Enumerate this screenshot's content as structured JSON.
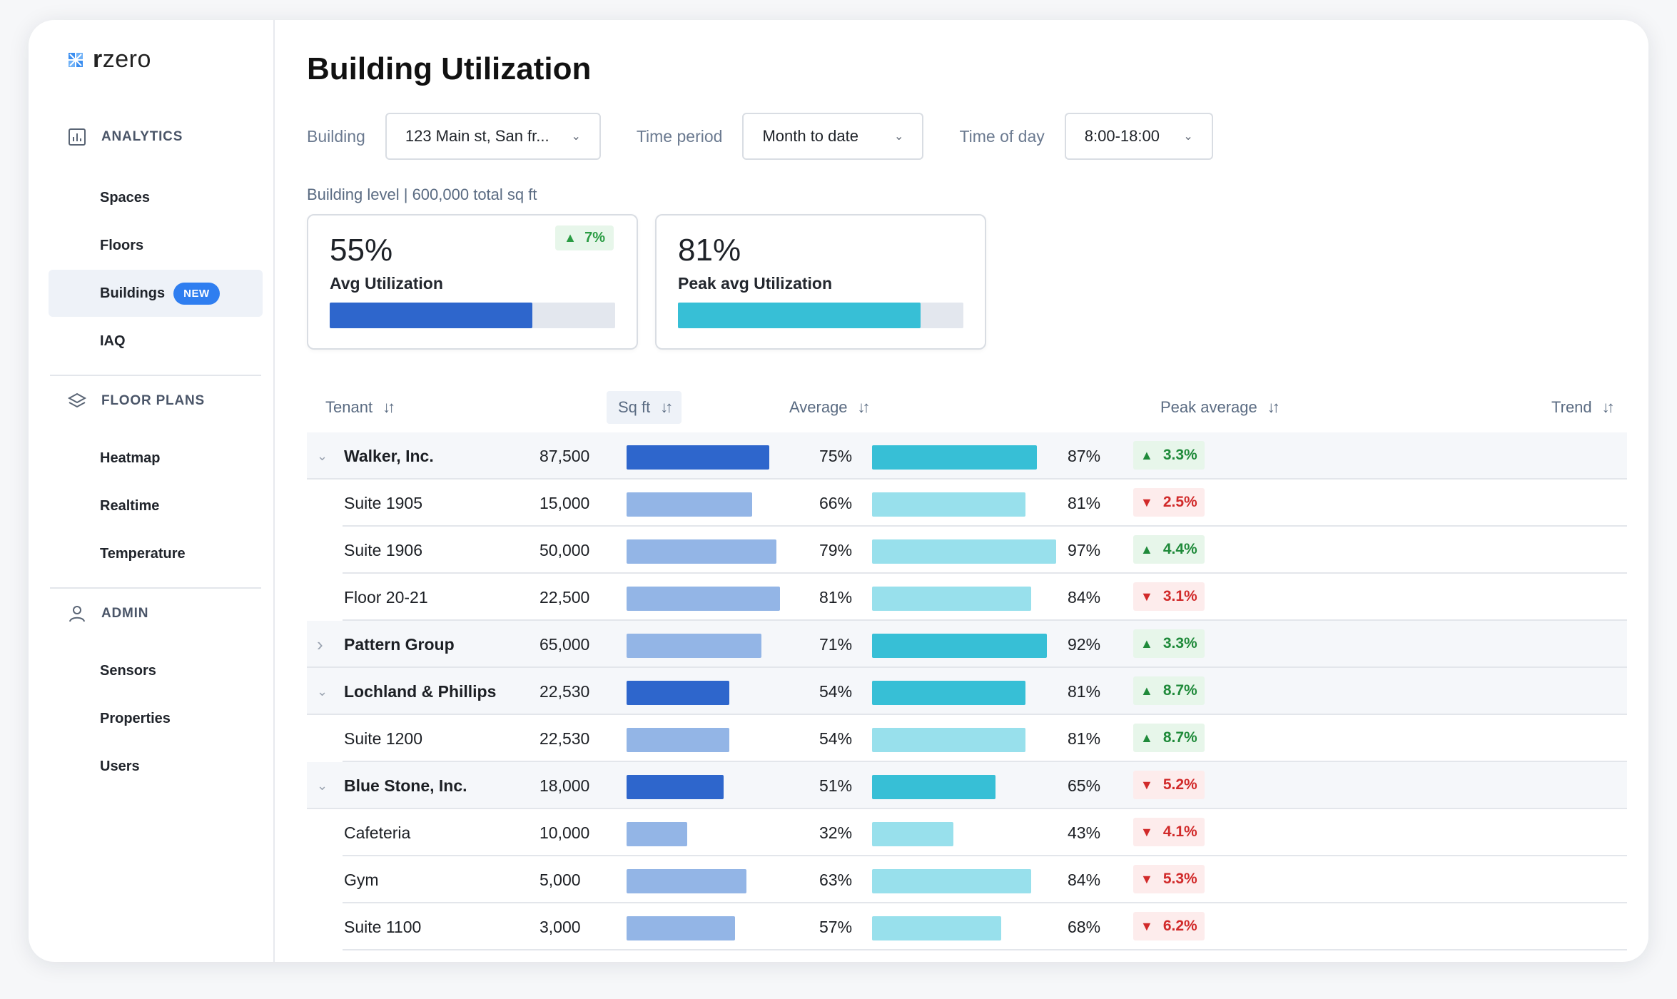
{
  "app": {
    "logo_text_bold": "r",
    "logo_text": "zero"
  },
  "sidebar": {
    "analytics": {
      "title": "ANALYTICS",
      "items": [
        {
          "label": "Spaces"
        },
        {
          "label": "Floors"
        },
        {
          "label": "Buildings",
          "badge": "NEW"
        },
        {
          "label": "IAQ"
        }
      ]
    },
    "floor_plans": {
      "title": "FLOOR PLANS",
      "items": [
        {
          "label": "Heatmap"
        },
        {
          "label": "Realtime"
        },
        {
          "label": "Temperature"
        }
      ]
    },
    "admin": {
      "title": "ADMIN",
      "items": [
        {
          "label": "Sensors"
        },
        {
          "label": "Properties"
        },
        {
          "label": "Users"
        }
      ]
    }
  },
  "page": {
    "title": "Building Utilization",
    "filters": {
      "building_label": "Building",
      "building_value": "123 Main st, San fr...",
      "period_label": "Time period",
      "period_value": "Month to date",
      "tod_label": "Time of day",
      "tod_value": "8:00-18:00"
    },
    "level_line": "Building level  |  600,000 total sq ft",
    "kpis": {
      "avg": {
        "value": "55%",
        "label": "Avg Utilization",
        "delta": "7%",
        "fraction": 0.71
      },
      "peak": {
        "value": "81%",
        "label": "Peak avg Utilization",
        "fraction": 0.85
      }
    }
  },
  "colors": {
    "avg_dark": "#2e66cc",
    "avg_light": "#93b5e6",
    "peak_dark": "#37bfd6",
    "peak_light": "#98e0ec"
  },
  "table": {
    "headers": {
      "tenant": "Tenant",
      "sqft": "Sq ft",
      "average": "Average",
      "peak": "Peak average",
      "trend": "Trend"
    },
    "rows": [
      {
        "type": "parent",
        "expanded": true,
        "name": "Walker, Inc.",
        "sqft": "87,500",
        "avg": "75%",
        "avg_val": 0.75,
        "peak": "87%",
        "peak_val": 0.87,
        "trend": "3.3%",
        "dir": "up"
      },
      {
        "type": "child",
        "name": "Suite 1905",
        "sqft": "15,000",
        "avg": "66%",
        "avg_val": 0.66,
        "peak": "81%",
        "peak_val": 0.81,
        "trend": "2.5%",
        "dir": "down"
      },
      {
        "type": "child",
        "name": "Suite 1906",
        "sqft": "50,000",
        "avg": "79%",
        "avg_val": 0.79,
        "peak": "97%",
        "peak_val": 0.97,
        "trend": "4.4%",
        "dir": "up"
      },
      {
        "type": "child",
        "name": "Floor 20-21",
        "sqft": "22,500",
        "avg": "81%",
        "avg_val": 0.81,
        "peak": "84%",
        "peak_val": 0.84,
        "trend": "3.1%",
        "dir": "down"
      },
      {
        "type": "parent",
        "expanded": false,
        "name": "Pattern Group",
        "sqft": "65,000",
        "avg": "71%",
        "avg_val": 0.71,
        "peak": "92%",
        "peak_val": 0.92,
        "trend": "3.3%",
        "dir": "up",
        "light_avg": true
      },
      {
        "type": "parent",
        "expanded": true,
        "name": "Lochland & Phillips",
        "sqft": "22,530",
        "avg": "54%",
        "avg_val": 0.54,
        "peak": "81%",
        "peak_val": 0.81,
        "trend": "8.7%",
        "dir": "up"
      },
      {
        "type": "child",
        "name": "Suite 1200",
        "sqft": "22,530",
        "avg": "54%",
        "avg_val": 0.54,
        "peak": "81%",
        "peak_val": 0.81,
        "trend": "8.7%",
        "dir": "up"
      },
      {
        "type": "parent",
        "expanded": true,
        "name": "Blue Stone, Inc.",
        "sqft": "18,000",
        "avg": "51%",
        "avg_val": 0.51,
        "peak": "65%",
        "peak_val": 0.65,
        "trend": "5.2%",
        "dir": "down"
      },
      {
        "type": "child",
        "name": "Cafeteria",
        "sqft": "10,000",
        "avg": "32%",
        "avg_val": 0.32,
        "peak": "43%",
        "peak_val": 0.43,
        "trend": "4.1%",
        "dir": "down"
      },
      {
        "type": "child",
        "name": "Gym",
        "sqft": "5,000",
        "avg": "63%",
        "avg_val": 0.63,
        "peak": "84%",
        "peak_val": 0.84,
        "trend": "5.3%",
        "dir": "down"
      },
      {
        "type": "child",
        "name": "Suite 1100",
        "sqft": "3,000",
        "avg": "57%",
        "avg_val": 0.57,
        "peak": "68%",
        "peak_val": 0.68,
        "trend": "6.2%",
        "dir": "down"
      }
    ]
  }
}
